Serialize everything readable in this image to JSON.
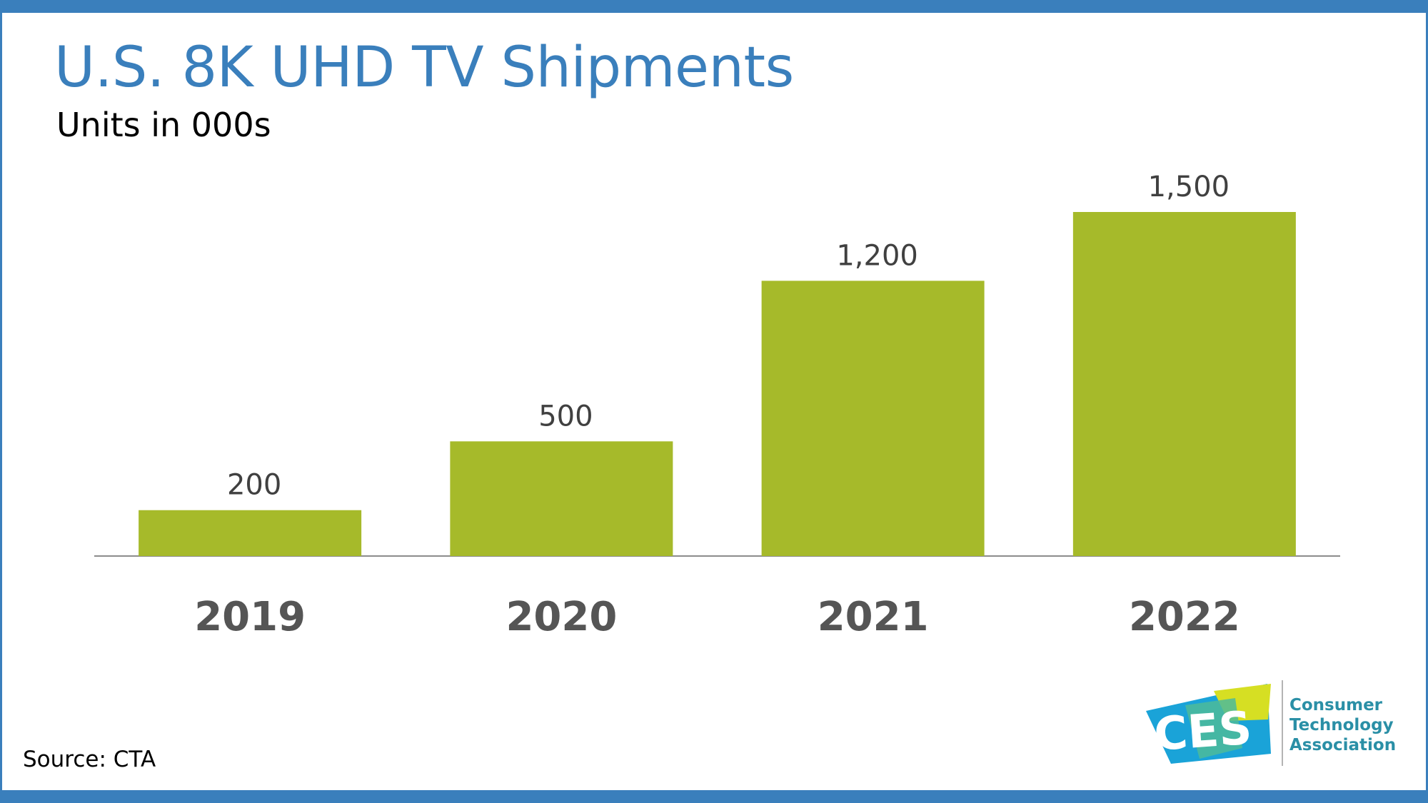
{
  "slide": {
    "title": "U.S. 8K UHD TV Shipments",
    "subtitle": "Units in 000s",
    "source": "Source: CTA",
    "logo": {
      "text": "CES",
      "org_lines": [
        "Consumer",
        "Technology",
        "Association"
      ]
    }
  },
  "colors": {
    "accent": "#3a7fbc",
    "bar": "#a6ba2a",
    "label": "#555555"
  },
  "chart_data": {
    "type": "bar",
    "categories": [
      "2019",
      "2020",
      "2021",
      "2022"
    ],
    "values": [
      200,
      500,
      1200,
      1500
    ],
    "value_labels": [
      "200",
      "500",
      "1,200",
      "1,500"
    ],
    "title": "U.S. 8K UHD TV Shipments",
    "subtitle": "Units in 000s",
    "xlabel": "",
    "ylabel": "",
    "ylim": [
      0,
      1500
    ],
    "grid": false,
    "legend": "none"
  }
}
